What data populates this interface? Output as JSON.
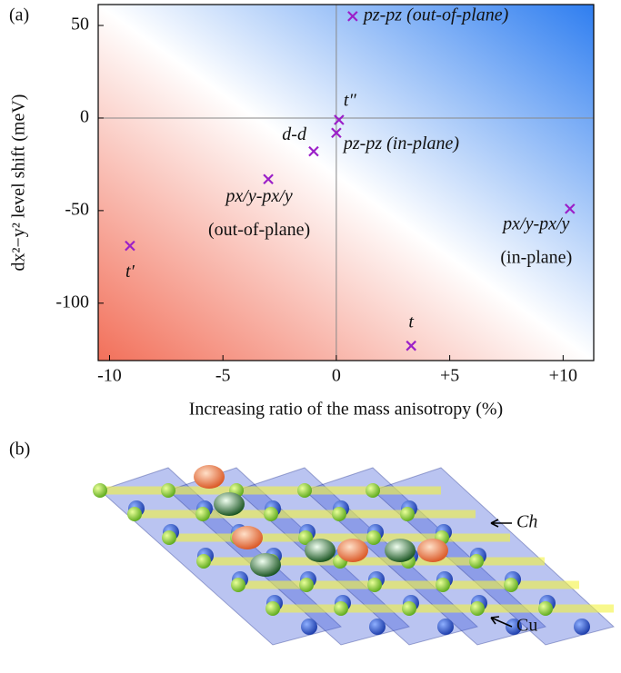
{
  "chart_data": {
    "type": "scatter",
    "panel_label": "(a)",
    "x_label": "Increasing ratio of the mass anisotropy (%)",
    "y_label": "dx²−y² level shift (meV)",
    "xlim": [
      -10.5,
      11.35
    ],
    "ylim": [
      -131,
      61.3
    ],
    "xticks": [
      -10,
      -5,
      0,
      {
        "value": 5,
        "label": "+5"
      },
      {
        "value": 10,
        "label": "+10"
      }
    ],
    "yticks": [
      50,
      0,
      -50,
      -100
    ],
    "color": "#9b1fc8",
    "x": [
      0.72,
      0.12,
      0.0,
      -1.0,
      -3.0,
      -9.1,
      10.3,
      3.3
    ],
    "values": [
      55,
      -1,
      -8,
      -18,
      -33,
      -69,
      -49,
      -123
    ],
    "point_labels": [
      [
        "pz-pz (out-of-plane)"
      ],
      [
        "t″"
      ],
      [
        "pz-pz (in-plane)"
      ],
      [
        "d-d"
      ],
      [
        "px/y-px/y",
        "(out-of-plane)"
      ],
      [
        "t′"
      ],
      [
        "px/y-px/y",
        "(in-plane)"
      ],
      [
        "t"
      ]
    ]
  },
  "structure": {
    "panel_label": "(b)",
    "labels": [
      "Ch",
      "Cu"
    ]
  }
}
